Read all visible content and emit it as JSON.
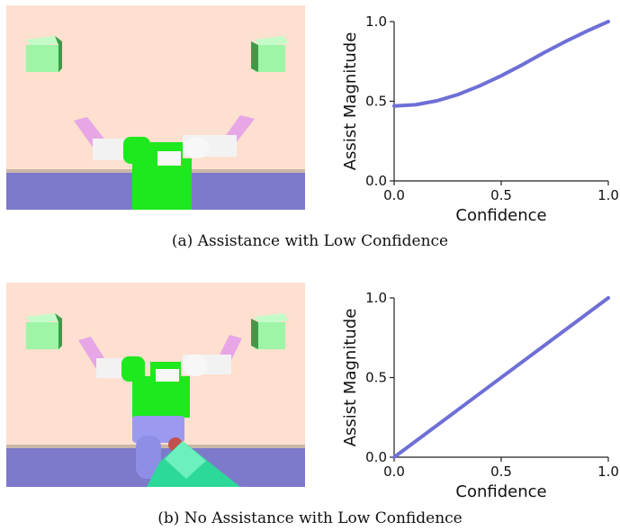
{
  "figures": [
    {
      "caption": "(a) Assistance with Low Confidence",
      "scene": {
        "variant": "low-assist"
      }
    },
    {
      "caption": "(b) No Assistance with Low Confidence",
      "scene": {
        "variant": "no-assist"
      }
    }
  ],
  "colors": {
    "curve": "#6e6fd6",
    "wall": "#fde0cf",
    "floor": "#7d7acb",
    "cube": "#9ef5a6",
    "gripper_body": "#1ee81e",
    "finger": "#e7a6e6"
  },
  "chart_data": [
    {
      "type": "line",
      "title": "",
      "xlabel": "Confidence",
      "ylabel": "Assist Magnitude",
      "xlim": [
        0.0,
        1.0
      ],
      "ylim": [
        0.0,
        1.0
      ],
      "xticks": [
        "0.0",
        "0.5",
        "1.0"
      ],
      "yticks": [
        "0.0",
        "0.5",
        "1.0"
      ],
      "grid": false,
      "series": [
        {
          "x": [
            0.0,
            0.1,
            0.2,
            0.3,
            0.4,
            0.5,
            0.6,
            0.7,
            0.8,
            0.9,
            1.0
          ],
          "y": [
            0.47,
            0.478,
            0.503,
            0.543,
            0.597,
            0.66,
            0.73,
            0.805,
            0.875,
            0.94,
            1.0
          ]
        }
      ]
    },
    {
      "type": "line",
      "title": "",
      "xlabel": "Confidence",
      "ylabel": "Assist Magnitude",
      "xlim": [
        0.0,
        1.0
      ],
      "ylim": [
        0.0,
        1.0
      ],
      "xticks": [
        "0.0",
        "0.5",
        "1.0"
      ],
      "yticks": [
        "0.0",
        "0.5",
        "1.0"
      ],
      "grid": false,
      "series": [
        {
          "x": [
            0.0,
            1.0
          ],
          "y": [
            0.0,
            1.0
          ]
        }
      ]
    }
  ]
}
